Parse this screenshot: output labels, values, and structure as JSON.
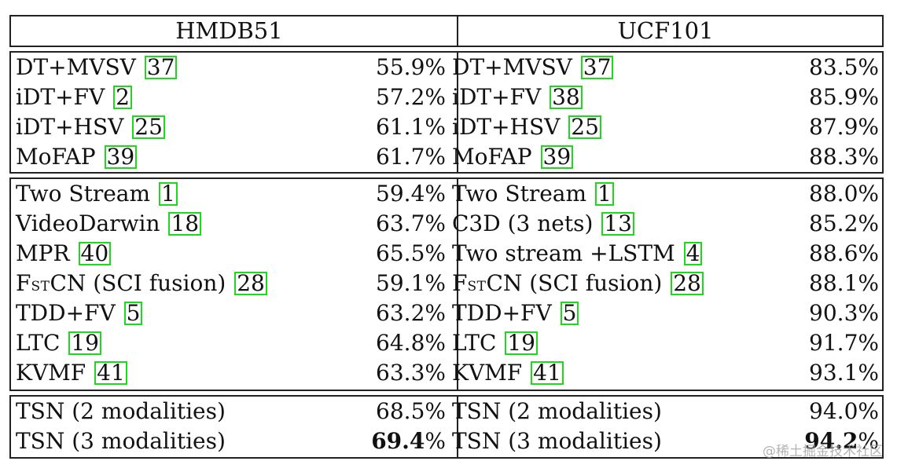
{
  "header": {
    "left": "HMDB51",
    "right": "UCF101"
  },
  "groups": [
    {
      "rows": [
        {
          "l_name": "DT+MVSV",
          "l_cite": "37",
          "l_val": "55.9%",
          "r_name": "DT+MVSV",
          "r_cite": "37",
          "r_val": "83.5%"
        },
        {
          "l_name": "iDT+FV",
          "l_cite": "2",
          "l_val": "57.2%",
          "r_name": "iDT+FV",
          "r_cite": "38",
          "r_val": "85.9%"
        },
        {
          "l_name": "iDT+HSV",
          "l_cite": "25",
          "l_val": "61.1%",
          "r_name": "iDT+HSV",
          "r_cite": "25",
          "r_val": "87.9%"
        },
        {
          "l_name": "MoFAP",
          "l_cite": "39",
          "l_val": "61.7%",
          "r_name": "MoFAP",
          "r_cite": "39",
          "r_val": "88.3%"
        }
      ]
    },
    {
      "rows": [
        {
          "l_name": "Two Stream",
          "l_cite": "1",
          "l_val": "59.4%",
          "r_name": "Two Stream",
          "r_cite": "1",
          "r_val": "88.0%"
        },
        {
          "l_name": "VideoDarwin",
          "l_cite": "18",
          "l_val": "63.7%",
          "r_name": "C3D (3 nets)",
          "r_cite": "13",
          "r_val": "85.2%"
        },
        {
          "l_name": "MPR",
          "l_cite": "40",
          "l_val": "65.5%",
          "r_name": "Two stream +LSTM",
          "r_cite": "4",
          "r_val": "88.6%"
        },
        {
          "l_name_pre": "F",
          "l_name_sc": "ST",
          "l_name": "CN (SCI fusion)",
          "l_cite": "28",
          "l_val": "59.1%",
          "r_name_pre": "F",
          "r_name_sc": "ST",
          "r_name": "CN (SCI fusion)",
          "r_cite": "28",
          "r_val": "88.1%"
        },
        {
          "l_name": "TDD+FV",
          "l_cite": "5",
          "l_val": "63.2%",
          "r_name": "TDD+FV",
          "r_cite": "5",
          "r_val": "90.3%"
        },
        {
          "l_name": "LTC",
          "l_cite": "19",
          "l_val": "64.8%",
          "r_name": "LTC",
          "r_cite": "19",
          "r_val": "91.7%"
        },
        {
          "l_name": "KVMF",
          "l_cite": "41",
          "l_val": "63.3%",
          "r_name": "KVMF",
          "r_cite": "41",
          "r_val": "93.1%"
        }
      ]
    },
    {
      "rows": [
        {
          "l_name": "TSN (2 modalities)",
          "l_val": "68.5%",
          "r_name": "TSN (2 modalities)",
          "r_val": "94.0%"
        },
        {
          "l_name": "TSN (3 modalities)",
          "l_val_bold": "69.4",
          "l_val_tail": "%",
          "r_name": "TSN (3 modalities)",
          "r_val_bold": "94.2",
          "r_val_tail": "%"
        }
      ]
    }
  ],
  "watermark": "@稀土掘金技术社区"
}
